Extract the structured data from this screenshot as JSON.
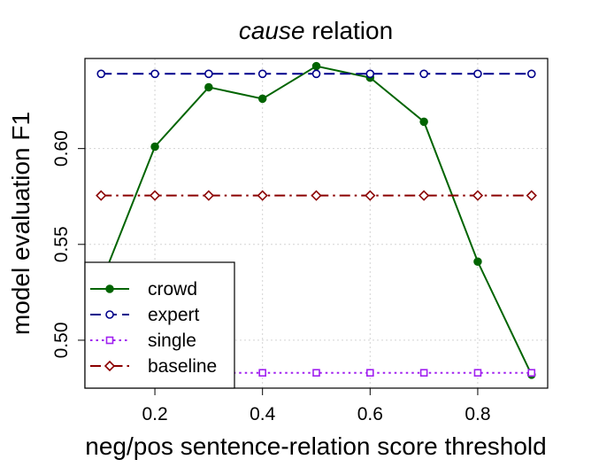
{
  "chart_data": {
    "type": "line",
    "title_italic": "cause",
    "title_rest": "relation",
    "xlabel": "neg/pos sentence-relation score threshold",
    "ylabel": "model evaluation F1",
    "xlim": [
      0.07,
      0.93
    ],
    "ylim": [
      0.475,
      0.647
    ],
    "x_ticks": [
      0.2,
      0.4,
      0.6,
      0.8
    ],
    "x_tick_labels": [
      "0.2",
      "0.4",
      "0.6",
      "0.8"
    ],
    "y_ticks": [
      0.5,
      0.55,
      0.6
    ],
    "y_tick_labels": [
      "0.50",
      "0.55",
      "0.60"
    ],
    "grid": true,
    "legend_position": "bottom-left",
    "x": [
      0.1,
      0.2,
      0.3,
      0.4,
      0.5,
      0.6,
      0.7,
      0.8,
      0.9
    ],
    "series": [
      {
        "name": "crowd",
        "color": "#006400",
        "dash": "solid",
        "marker": "filled-circle",
        "values": [
          0.53,
          0.601,
          0.632,
          0.626,
          0.643,
          0.637,
          0.614,
          0.541,
          0.482
        ]
      },
      {
        "name": "expert",
        "color": "#00008B",
        "dash": "dashed",
        "marker": "open-circle",
        "values": [
          0.639,
          0.639,
          0.639,
          0.639,
          0.639,
          0.639,
          0.639,
          0.639,
          0.639
        ]
      },
      {
        "name": "single",
        "color": "#A020F0",
        "dash": "dotted",
        "marker": "open-square",
        "values": [
          0.483,
          0.483,
          0.483,
          0.483,
          0.483,
          0.483,
          0.483,
          0.483,
          0.483
        ]
      },
      {
        "name": "baseline",
        "color": "#8B0000",
        "dash": "dashdot",
        "marker": "open-diamond",
        "values": [
          0.5755,
          0.5755,
          0.5755,
          0.5755,
          0.5755,
          0.5755,
          0.5755,
          0.5755,
          0.5755
        ]
      }
    ]
  }
}
